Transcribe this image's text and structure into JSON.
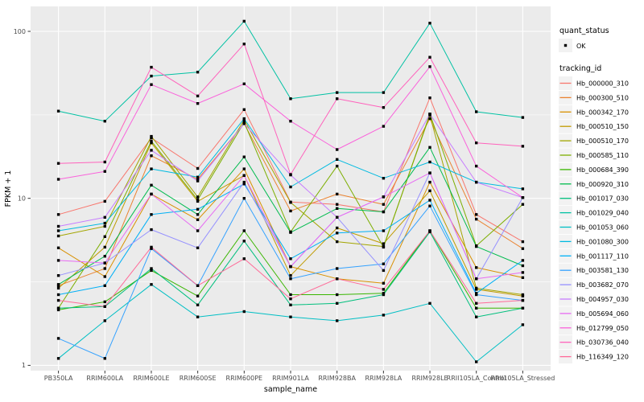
{
  "chart_data": {
    "type": "line",
    "title": "",
    "xlabel": "sample_name",
    "ylabel": "FPKM + 1",
    "y_scale": "log10",
    "y_tick_labels": [
      "1",
      "10",
      "100"
    ],
    "y_tick_values": [
      1,
      10,
      100
    ],
    "y_minor_values": [
      3.1623,
      31.623
    ],
    "ylim": [
      0.93,
      141
    ],
    "grid": true,
    "legend_position": "right",
    "panel_background": "#EBEBEB",
    "grid_color": "#FFFFFF",
    "axis_text_color": "#4D4D4D",
    "title_text_color": "#000000",
    "point_color": "#000000",
    "legend_key_fill": "#F2F2F2",
    "categories": [
      "PB350LA",
      "RRIM600LA",
      "RRIM600LE",
      "RRIM600SE",
      "RRIM600PE",
      "RRIM901LA",
      "RRIM928BA",
      "RRIM928LA",
      "RRIM928LE",
      "RRII105LA_Control",
      "RRII105LA_Stressed"
    ],
    "legend": {
      "quant_title": "quant_status",
      "quant_items": [
        {
          "label": "OK",
          "glyph": "point",
          "color": "#000000"
        }
      ],
      "series_title": "tracking_id"
    },
    "series": [
      {
        "name": "Hb_000000_310",
        "color": "#F8766D",
        "values": [
          8.0,
          9.6,
          23.0,
          15.1,
          34.0,
          9.5,
          9.2,
          8.3,
          40.0,
          8.0,
          5.5
        ]
      },
      {
        "name": "Hb_000300_510",
        "color": "#EA8331",
        "values": [
          3.0,
          3.8,
          18.0,
          13.0,
          28.0,
          8.4,
          10.6,
          9.2,
          30.0,
          7.5,
          5.0
        ]
      },
      {
        "name": "Hb_000342_170",
        "color": "#D89000",
        "values": [
          5.05,
          3.4,
          10.6,
          7.45,
          15.0,
          3.9,
          3.3,
          3.1,
          12.5,
          3.85,
          3.35
        ]
      },
      {
        "name": "Hb_000510_150",
        "color": "#C09B00",
        "values": [
          2.9,
          5.1,
          21.5,
          9.6,
          13.7,
          3.45,
          6.65,
          5.35,
          11.1,
          2.85,
          2.6
        ]
      },
      {
        "name": "Hb_000510_170",
        "color": "#A3A500",
        "values": [
          5.95,
          6.8,
          23.5,
          10.2,
          29.5,
          9.45,
          5.5,
          5.15,
          31.5,
          2.9,
          2.65
        ]
      },
      {
        "name": "Hb_000585_110",
        "color": "#7CAE00",
        "values": [
          2.2,
          5.9,
          22.0,
          9.8,
          28.5,
          6.3,
          15.6,
          5.1,
          32.0,
          5.2,
          9.2
        ]
      },
      {
        "name": "Hb_000684_390",
        "color": "#39B600",
        "values": [
          2.15,
          2.4,
          3.7,
          2.6,
          6.4,
          2.65,
          2.65,
          2.7,
          6.4,
          2.2,
          2.2
        ]
      },
      {
        "name": "Hb_000920_310",
        "color": "#00BB4E",
        "values": [
          3.05,
          4.5,
          12.0,
          8.0,
          17.7,
          6.25,
          8.7,
          8.3,
          20.2,
          5.15,
          3.95
        ]
      },
      {
        "name": "Hb_001017_030",
        "color": "#00BF7D",
        "values": [
          2.2,
          2.25,
          3.8,
          2.3,
          5.55,
          2.3,
          2.35,
          2.65,
          6.3,
          1.95,
          2.2
        ]
      },
      {
        "name": "Hb_001029_040",
        "color": "#00C1A3",
        "values": [
          33.3,
          29.0,
          54.0,
          57.0,
          115.0,
          39.5,
          43.0,
          43.0,
          112.0,
          33.0,
          30.5
        ]
      },
      {
        "name": "Hb_001053_060",
        "color": "#00BFC4",
        "values": [
          1.1,
          1.85,
          3.05,
          1.95,
          2.1,
          1.95,
          1.85,
          2.0,
          2.35,
          1.05,
          1.75
        ]
      },
      {
        "name": "Hb_001080_300",
        "color": "#00BAE0",
        "values": [
          6.4,
          7.1,
          15.0,
          13.4,
          30.0,
          11.7,
          17.1,
          13.2,
          16.5,
          12.5,
          11.4
        ]
      },
      {
        "name": "Hb_001117_110",
        "color": "#00B0F6",
        "values": [
          2.65,
          3.0,
          8.0,
          8.6,
          12.2,
          4.35,
          6.2,
          6.4,
          9.75,
          2.7,
          4.25
        ]
      },
      {
        "name": "Hb_003581_130",
        "color": "#35A2FF",
        "values": [
          1.45,
          1.1,
          5.0,
          3.0,
          10.0,
          3.3,
          3.8,
          4.05,
          9.0,
          2.65,
          2.45
        ]
      },
      {
        "name": "Hb_003682_070",
        "color": "#9590FF",
        "values": [
          3.45,
          4.1,
          6.5,
          5.05,
          12.5,
          3.9,
          7.7,
          3.7,
          14.2,
          3.3,
          10.1
        ]
      },
      {
        "name": "Hb_004957_030",
        "color": "#C77CFF",
        "values": [
          6.8,
          7.7,
          19.4,
          12.7,
          28.0,
          13.8,
          7.7,
          10.2,
          32.0,
          12.5,
          10.1
        ]
      },
      {
        "name": "Hb_005694_060",
        "color": "#E76BF3",
        "values": [
          4.25,
          4.1,
          10.6,
          6.4,
          13.7,
          3.9,
          7.7,
          10.2,
          14.2,
          3.3,
          3.6
        ]
      },
      {
        "name": "Hb_012799_050",
        "color": "#FA62DB",
        "values": [
          13.0,
          14.5,
          48.0,
          37.0,
          48.5,
          29.0,
          19.6,
          27.0,
          61.5,
          15.6,
          10.1
        ]
      },
      {
        "name": "Hb_030736_040",
        "color": "#FF62BC",
        "values": [
          16.2,
          16.5,
          61.0,
          41.0,
          84.0,
          13.9,
          39.5,
          35.0,
          70.0,
          21.5,
          20.5
        ]
      },
      {
        "name": "Hb_116349_120",
        "color": "#FF6A98",
        "values": [
          2.45,
          2.25,
          5.1,
          3.0,
          4.35,
          2.5,
          3.3,
          2.85,
          6.4,
          2.35,
          2.45
        ]
      }
    ]
  }
}
